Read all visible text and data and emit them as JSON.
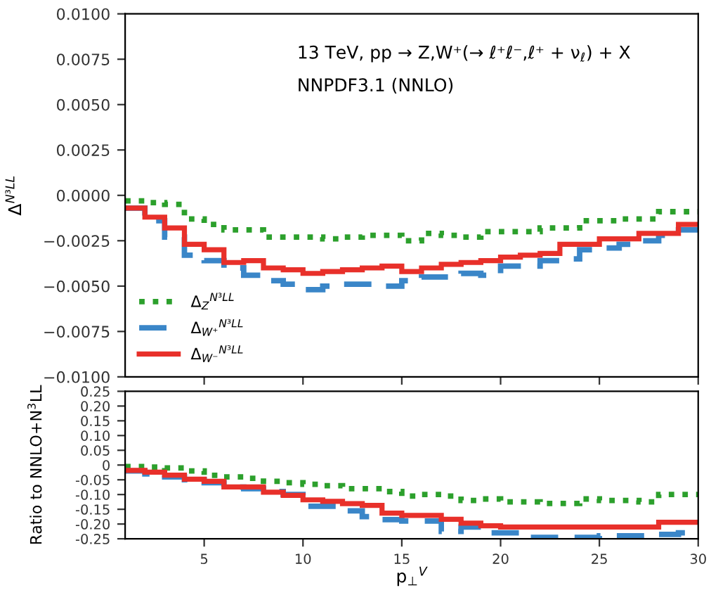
{
  "chart_data": [
    {
      "type": "histogram",
      "ylabel": "Δ$^{N³LL}$",
      "annotations": [
        "13 TeV, pp → Z,W⁺(→ ℓ⁺ℓ⁻,ℓ⁺ + ν$_{ℓ}$) + X",
        "NNPDF3.1 (NNLO)"
      ],
      "bins": [
        1,
        2,
        3,
        4,
        5,
        6,
        7,
        8,
        9,
        10,
        11,
        12,
        13,
        14,
        15,
        16,
        17,
        18,
        19,
        20,
        21,
        22,
        23,
        24,
        25,
        26,
        27,
        28,
        29,
        30
      ],
      "series": [
        {
          "name": "Δ$_{Z}$$^{N³LL}$",
          "color": "#2ca02c",
          "line_style": "dotted",
          "values": [
            -0.0003,
            -0.0004,
            -0.0005,
            -0.0013,
            -0.0016,
            -0.0019,
            -0.0019,
            -0.0023,
            -0.0023,
            -0.0023,
            -0.0024,
            -0.0023,
            -0.0022,
            -0.0022,
            -0.0025,
            -0.0021,
            -0.0022,
            -0.0023,
            -0.002,
            -0.002,
            -0.002,
            -0.0018,
            -0.0018,
            -0.0014,
            -0.0014,
            -0.0013,
            -0.0013,
            -0.0009,
            -0.0009
          ]
        },
        {
          "name": "Δ$_{W⁺}$$^{N³LL}$",
          "color": "#3a86c8",
          "line_style": "dashed",
          "values": [
            -0.0007,
            -0.0014,
            -0.0023,
            -0.0033,
            -0.0036,
            -0.004,
            -0.0044,
            -0.0047,
            -0.0049,
            -0.0052,
            -0.005,
            -0.0049,
            -0.0049,
            -0.005,
            -0.0047,
            -0.0045,
            -0.0045,
            -0.0043,
            -0.0044,
            -0.0039,
            -0.0039,
            -0.0036,
            -0.0035,
            -0.003,
            -0.0029,
            -0.0027,
            -0.0025,
            -0.0022,
            -0.0019
          ]
        },
        {
          "name": "Δ$_{W⁻}$$^{N³LL}$",
          "color": "#e8302a",
          "line_style": "solid",
          "values": [
            -0.0007,
            -0.0012,
            -0.0018,
            -0.0027,
            -0.003,
            -0.0037,
            -0.0036,
            -0.004,
            -0.0041,
            -0.0043,
            -0.0042,
            -0.0041,
            -0.004,
            -0.0039,
            -0.0042,
            -0.004,
            -0.0038,
            -0.0037,
            -0.0036,
            -0.0034,
            -0.0033,
            -0.0032,
            -0.0027,
            -0.0027,
            -0.0024,
            -0.0024,
            -0.0021,
            -0.0021,
            -0.0016
          ]
        }
      ],
      "xlim": [
        1,
        30
      ],
      "xticks": [
        5,
        10,
        15,
        20,
        25,
        30
      ],
      "ylim": [
        -0.01,
        0.01
      ],
      "yticks": [
        {
          "value": 0.01,
          "label": "0.0100"
        },
        {
          "value": 0.0075,
          "label": "0.0075"
        },
        {
          "value": 0.005,
          "label": "0.0050"
        },
        {
          "value": 0.0025,
          "label": "0.0025"
        },
        {
          "value": 0,
          "label": "0.0000"
        },
        {
          "value": -0.0025,
          "label": "−0.0025"
        },
        {
          "value": -0.005,
          "label": "−0.0050"
        },
        {
          "value": -0.0075,
          "label": "−0.0075"
        },
        {
          "value": -0.01,
          "label": "−0.0100"
        }
      ],
      "tick_labels": "y",
      "legend": "bottom left"
    },
    {
      "type": "histogram",
      "xlabel": "p$_{⊥}$$^{V}$",
      "ylabel": "Ratio to NNLO+N$^{3}$LL",
      "bins": [
        1,
        2,
        3,
        4,
        5,
        6,
        7,
        8,
        9,
        10,
        11,
        12,
        13,
        14,
        15,
        16,
        17,
        18,
        19,
        20,
        21,
        22,
        23,
        24,
        25,
        26,
        27,
        28,
        29,
        30
      ],
      "series": [
        {
          "color": "#2ca02c",
          "line_style": "dotted",
          "values": [
            -0.005,
            -0.007,
            -0.01,
            -0.02,
            -0.035,
            -0.04,
            -0.045,
            -0.055,
            -0.06,
            -0.065,
            -0.07,
            -0.08,
            -0.08,
            -0.09,
            -0.105,
            -0.1,
            -0.105,
            -0.12,
            -0.115,
            -0.125,
            -0.125,
            -0.13,
            -0.13,
            -0.115,
            -0.12,
            -0.12,
            -0.125,
            -0.1,
            -0.1
          ]
        },
        {
          "color": "#3a86c8",
          "line_style": "dashed",
          "values": [
            -0.02,
            -0.03,
            -0.04,
            -0.05,
            -0.06,
            -0.075,
            -0.08,
            -0.09,
            -0.1,
            -0.14,
            -0.14,
            -0.155,
            -0.175,
            -0.185,
            -0.19,
            -0.19,
            -0.225,
            -0.21,
            -0.23,
            -0.23,
            -0.245,
            -0.245,
            -0.245,
            -0.245,
            -0.24,
            -0.24,
            -0.24,
            -0.235,
            -0.23
          ]
        },
        {
          "color": "#e8302a",
          "line_style": "solid",
          "values": [
            -0.018,
            -0.024,
            -0.034,
            -0.048,
            -0.055,
            -0.074,
            -0.074,
            -0.092,
            -0.103,
            -0.118,
            -0.123,
            -0.131,
            -0.137,
            -0.163,
            -0.171,
            -0.171,
            -0.184,
            -0.197,
            -0.206,
            -0.21,
            -0.21,
            -0.21,
            -0.21,
            -0.21,
            -0.21,
            -0.21,
            -0.21,
            -0.194,
            -0.194
          ]
        }
      ],
      "xlim": [
        1,
        30
      ],
      "xticks": [
        5,
        10,
        15,
        20,
        25,
        30
      ],
      "ylim": [
        -0.25,
        0.25
      ],
      "yticks": [
        {
          "value": 0.25,
          "label": "0.25"
        },
        {
          "value": 0.2,
          "label": "0.20"
        },
        {
          "value": 0.15,
          "label": "0.15"
        },
        {
          "value": 0.1,
          "label": "0.10"
        },
        {
          "value": 0.05,
          "label": "0.05"
        },
        0,
        {
          "value": -0.05,
          "label": "-0.05"
        },
        {
          "value": -0.1,
          "label": "-0.10"
        },
        {
          "value": -0.15,
          "label": "-0.15"
        },
        {
          "value": -0.2,
          "label": "-0.20"
        },
        {
          "value": -0.25,
          "label": "-0.25"
        }
      ]
    }
  ]
}
